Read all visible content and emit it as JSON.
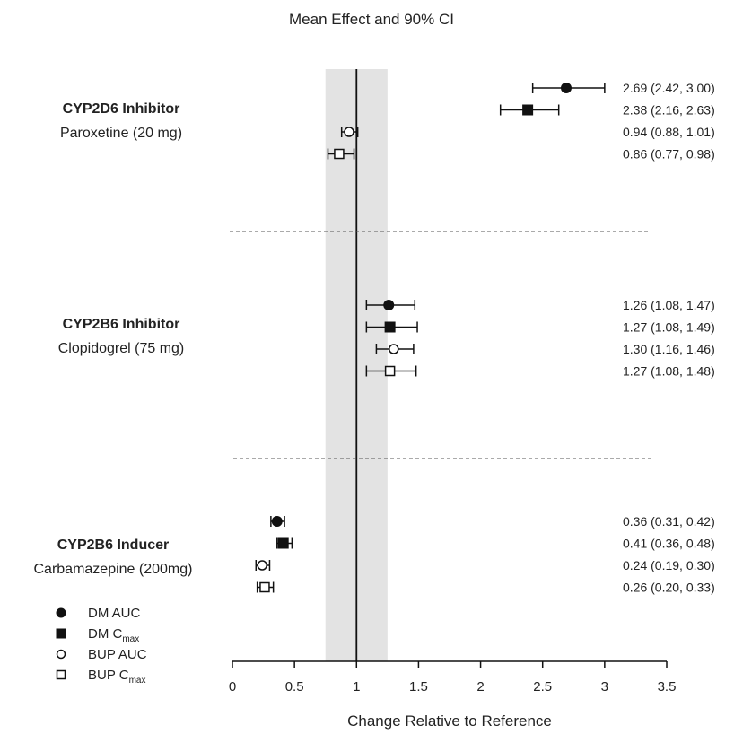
{
  "chart_data": {
    "type": "forest",
    "title": "Mean Effect and 90% CI",
    "xlabel": "Change Relative to Reference",
    "xlim": [
      0,
      3.5
    ],
    "xticks": [
      "0",
      "0.5",
      "1",
      "1.5",
      "2",
      "2.5",
      "3",
      "3.5"
    ],
    "reference_line": 1,
    "reference_band": [
      0.75,
      1.25
    ],
    "grid": false,
    "legend": [
      {
        "marker": "filled-circle",
        "label": "DM AUC",
        "sub": ""
      },
      {
        "marker": "filled-square",
        "label": "DM C",
        "sub": "max"
      },
      {
        "marker": "open-circle",
        "label": "BUP AUC",
        "sub": ""
      },
      {
        "marker": "open-square",
        "label": "BUP C",
        "sub": "max"
      }
    ],
    "groups": [
      {
        "name": "CYP2D6 Inhibitor",
        "drug": "Paroxetine (20 mg)",
        "rows": [
          {
            "marker": "filled-circle",
            "mean": 2.69,
            "lo": 2.42,
            "hi": 3.0,
            "label": "2.69 (2.42, 3.00)"
          },
          {
            "marker": "filled-square",
            "mean": 2.38,
            "lo": 2.16,
            "hi": 2.63,
            "label": "2.38 (2.16, 2.63)"
          },
          {
            "marker": "open-circle",
            "mean": 0.94,
            "lo": 0.88,
            "hi": 1.01,
            "label": "0.94 (0.88, 1.01)"
          },
          {
            "marker": "open-square",
            "mean": 0.86,
            "lo": 0.77,
            "hi": 0.98,
            "label": "0.86 (0.77, 0.98)"
          }
        ]
      },
      {
        "name": "CYP2B6 Inhibitor",
        "drug": "Clopidogrel (75 mg)",
        "rows": [
          {
            "marker": "filled-circle",
            "mean": 1.26,
            "lo": 1.08,
            "hi": 1.47,
            "label": "1.26 (1.08, 1.47)"
          },
          {
            "marker": "filled-square",
            "mean": 1.27,
            "lo": 1.08,
            "hi": 1.49,
            "label": "1.27 (1.08, 1.49)"
          },
          {
            "marker": "open-circle",
            "mean": 1.3,
            "lo": 1.16,
            "hi": 1.46,
            "label": "1.30 (1.16, 1.46)"
          },
          {
            "marker": "open-square",
            "mean": 1.27,
            "lo": 1.08,
            "hi": 1.48,
            "label": "1.27 (1.08, 1.48)"
          }
        ]
      },
      {
        "name": "CYP2B6 Inducer",
        "drug": "Carbamazepine (200mg)",
        "rows": [
          {
            "marker": "filled-circle",
            "mean": 0.36,
            "lo": 0.31,
            "hi": 0.42,
            "label": "0.36 (0.31, 0.42)"
          },
          {
            "marker": "filled-square",
            "mean": 0.41,
            "lo": 0.36,
            "hi": 0.48,
            "label": "0.41 (0.36, 0.48)"
          },
          {
            "marker": "open-circle",
            "mean": 0.24,
            "lo": 0.19,
            "hi": 0.3,
            "label": "0.24 (0.19, 0.30)"
          },
          {
            "marker": "open-square",
            "mean": 0.26,
            "lo": 0.2,
            "hi": 0.33,
            "label": "0.26 (0.20, 0.33)"
          }
        ]
      }
    ]
  }
}
